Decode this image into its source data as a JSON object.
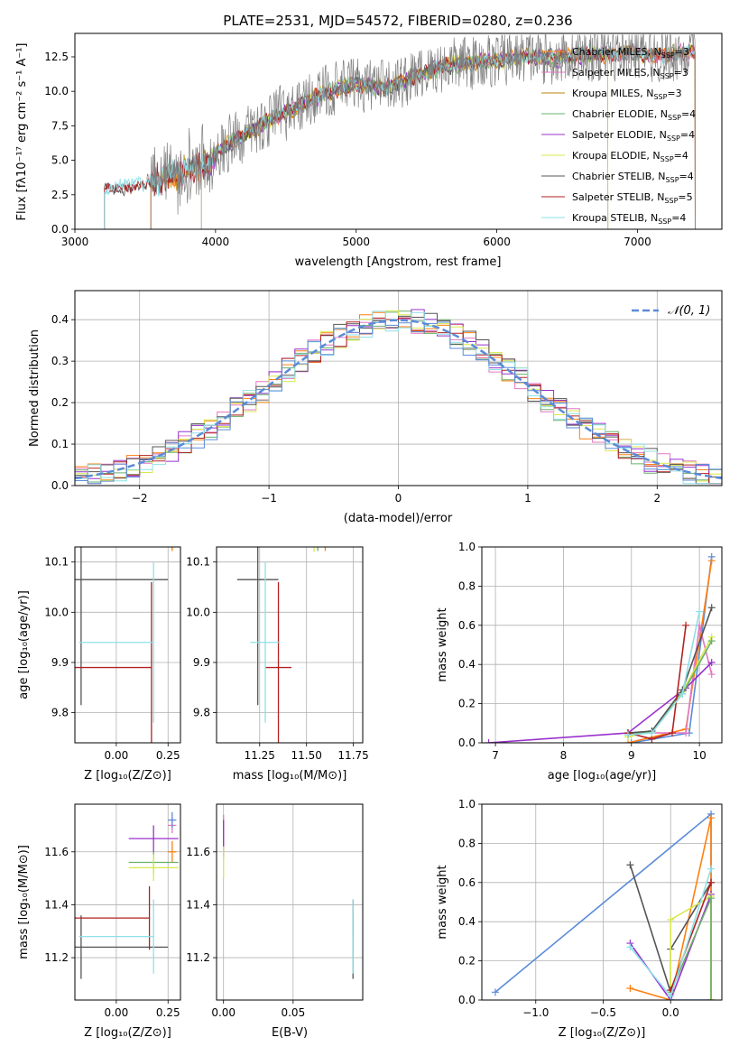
{
  "chart_data": [
    {
      "type": "line",
      "title": "PLATE=2531, MJD=54572, FIBERID=0280, z=0.236",
      "xlabel": "wavelength [Angstrom, rest frame]",
      "ylabel": "Flux [fλ10⁻¹⁷ erg cm⁻² s⁻¹ A⁻¹]",
      "xlim": [
        3000,
        7600
      ],
      "ylim": [
        0,
        14.2
      ],
      "xticks": [
        3000,
        4000,
        5000,
        6000,
        7000
      ],
      "yticks": [
        0.0,
        2.5,
        5.0,
        7.5,
        10.0,
        12.5
      ],
      "xticklabels": [
        "3000",
        "4000",
        "5000",
        "6000",
        "7000"
      ],
      "yticklabels": [
        "0.0",
        "2.5",
        "5.0",
        "7.5",
        "10.0",
        "12.5"
      ],
      "grid": false,
      "legend_position": "top-right",
      "continuum_x": [
        3200,
        3400,
        3600,
        3800,
        3950,
        4000,
        4200,
        4400,
        4600,
        4800,
        5000,
        5200,
        5400,
        5600,
        5800,
        6000,
        6200,
        6400,
        6600,
        6800,
        7000,
        7200,
        7400
      ],
      "continuum_y": [
        2.8,
        3.2,
        3.6,
        4.3,
        4.6,
        5.6,
        6.8,
        8.0,
        9.0,
        10.0,
        10.6,
        10.2,
        11.0,
        11.8,
        12.1,
        12.3,
        12.5,
        12.4,
        12.6,
        12.7,
        12.8,
        12.6,
        12.9
      ],
      "series": [
        {
          "name": "Chabrier MILES, N_SSP=3",
          "color": "#ff7f0e",
          "xrange": [
            3540,
            7410
          ]
        },
        {
          "name": "Salpeter MILES, N_SSP=3",
          "color": "#e377c2",
          "xrange": [
            3540,
            7410
          ]
        },
        {
          "name": "Kroupa MILES, N_SSP=3",
          "color": "#b8860b",
          "xrange": [
            3540,
            7410
          ]
        },
        {
          "name": "Chabrier ELODIE, N_SSP=4",
          "color": "#6ab06a",
          "xrange": [
            3900,
            6790
          ]
        },
        {
          "name": "Salpeter ELODIE, N_SSP=4",
          "color": "#9932cc",
          "xrange": [
            3900,
            6790
          ]
        },
        {
          "name": "Kroupa ELODIE, N_SSP=4",
          "color": "#d9e84e",
          "xrange": [
            3900,
            6790
          ]
        },
        {
          "name": "Chabrier STELIB, N_SSP=4",
          "color": "#555555",
          "xrange": [
            3210,
            7410
          ]
        },
        {
          "name": "Salpeter STELIB, N_SSP=5",
          "color": "#b22222",
          "xrange": [
            3210,
            7410
          ]
        },
        {
          "name": "Kroupa STELIB, N_SSP=4",
          "color": "#8ee0e8",
          "xrange": [
            3210,
            7410
          ]
        }
      ],
      "data_series": {
        "name": "data",
        "color": "#808080",
        "xrange": [
          3540,
          7410
        ]
      },
      "legend": {
        "entries": [
          {
            "base": "Chabrier MILES, N",
            "sub": "SSP",
            "tail": "=3",
            "color": "#ff7f0e"
          },
          {
            "base": "Salpeter MILES, N",
            "sub": "SSP",
            "tail": "=3",
            "color": "#e377c2"
          },
          {
            "base": "Kroupa MILES, N",
            "sub": "SSP",
            "tail": "=3",
            "color": "#b8860b"
          },
          {
            "base": "Chabrier ELODIE, N",
            "sub": "SSP",
            "tail": "=4",
            "color": "#6ab06a"
          },
          {
            "base": "Salpeter ELODIE, N",
            "sub": "SSP",
            "tail": "=4",
            "color": "#9932cc"
          },
          {
            "base": "Kroupa ELODIE, N",
            "sub": "SSP",
            "tail": "=4",
            "color": "#d9e84e"
          },
          {
            "base": "Chabrier STELIB, N",
            "sub": "SSP",
            "tail": "=4",
            "color": "#555555"
          },
          {
            "base": "Salpeter STELIB, N",
            "sub": "SSP",
            "tail": "=5",
            "color": "#b22222"
          },
          {
            "base": "Kroupa STELIB, N",
            "sub": "SSP",
            "tail": "=4",
            "color": "#8ee0e8"
          }
        ]
      }
    },
    {
      "type": "line",
      "title": "",
      "xlabel": "(data-model)/error",
      "ylabel": "Normed distribution",
      "xlim": [
        -2.5,
        2.5
      ],
      "ylim": [
        0,
        0.47
      ],
      "xticks": [
        -2,
        -1,
        0,
        1,
        2
      ],
      "yticks": [
        0.0,
        0.1,
        0.2,
        0.3,
        0.4
      ],
      "xticklabels": [
        "−2",
        "−1",
        "0",
        "1",
        "2"
      ],
      "yticklabels": [
        "0.0",
        "0.1",
        "0.2",
        "0.3",
        "0.4"
      ],
      "grid": true,
      "legend_position": "top-right",
      "legend_label": "𝒩(0, 1)",
      "gaussian": {
        "mean": 0,
        "sigma": 1,
        "color": "#5b8bd8"
      },
      "histogram_bin_width": 0.1,
      "histogram_colors": [
        "#ff7f0e",
        "#e377c2",
        "#6ab06a",
        "#9932cc",
        "#d9e84e",
        "#555555",
        "#b22222",
        "#8ee0e8",
        "#5b8bd8"
      ]
    },
    {
      "type": "scatter",
      "xlabel": "Z [log₁₀(Z/Z⊙)]",
      "ylabel": "age  [log₁₀(age/yr)]",
      "xlim": [
        -0.2,
        0.31
      ],
      "ylim": [
        9.74,
        10.13
      ],
      "xticks": [
        0.0,
        0.25
      ],
      "xticklabels": [
        "0.00",
        "0.25"
      ],
      "yticks": [
        9.8,
        9.9,
        10.0,
        10.1
      ],
      "yticklabels": [
        "9.8",
        "9.9",
        "10.0",
        "10.1"
      ],
      "grid": true,
      "points": [
        {
          "x": 0.27,
          "y": 10.152,
          "xerr": 0.02,
          "yerr": 0.03,
          "color": "#ff7f0e"
        },
        {
          "x": 0.27,
          "y": 10.155,
          "xerr": 0.02,
          "yerr": 0.02,
          "color": "#e377c2"
        },
        {
          "x": 0.18,
          "y": 10.152,
          "xerr": 0.12,
          "yerr": 0.02,
          "color": "#6ab06a"
        },
        {
          "x": 0.25,
          "y": 10.162,
          "xerr": 0.05,
          "yerr": 0.02,
          "color": "#9932cc"
        },
        {
          "x": 0.18,
          "y": 10.15,
          "xerr": 0.08,
          "yerr": 0.02,
          "color": "#d9e84e"
        },
        {
          "x": 0.25,
          "y": 10.168,
          "xerr": 0.02,
          "yerr": 0.02,
          "color": "#5b8bd8"
        },
        {
          "x": -0.17,
          "y": 10.065,
          "xerr_lo": 0.05,
          "xerr_hi": 0.42,
          "yerr": 0.25,
          "color": "#555555"
        },
        {
          "x": 0.17,
          "y": 9.89,
          "xerr_lo": 0.37,
          "xerr_hi": 0.0,
          "yerr": 0.17,
          "color": "#b22222"
        },
        {
          "x": 0.18,
          "y": 9.94,
          "xerr_lo": 0.36,
          "xerr_hi": 0.0,
          "yerr": 0.16,
          "color": "#8ee0e8"
        }
      ]
    },
    {
      "type": "scatter",
      "xlabel": "mass [log₁₀(M/M⊙)]",
      "ylabel": "",
      "xlim": [
        11.02,
        11.8
      ],
      "ylim": [
        9.74,
        10.13
      ],
      "xticks": [
        11.25,
        11.5,
        11.75
      ],
      "xticklabels": [
        "11.25",
        "11.50",
        "11.75"
      ],
      "yticks": [
        9.8,
        9.9,
        10.0,
        10.1
      ],
      "yticklabels": [
        "9.8",
        "9.9",
        "10.0",
        "10.1"
      ],
      "grid": true,
      "points": [
        {
          "x": 11.6,
          "y": 10.152,
          "xerr": 0.05,
          "yerr": 0.03,
          "color": "#ff7f0e"
        },
        {
          "x": 11.7,
          "y": 10.155,
          "xerr": 0.03,
          "yerr": 0.02,
          "color": "#e377c2"
        },
        {
          "x": 11.56,
          "y": 10.152,
          "xerr": 0.08,
          "yerr": 0.03,
          "color": "#6ab06a"
        },
        {
          "x": 11.65,
          "y": 10.16,
          "xerr": 0.07,
          "yerr": 0.03,
          "color": "#9932cc"
        },
        {
          "x": 11.54,
          "y": 10.15,
          "xerr": 0.06,
          "yerr": 0.03,
          "color": "#d9e84e"
        },
        {
          "x": 11.72,
          "y": 10.165,
          "xerr": 0.03,
          "yerr": 0.02,
          "color": "#5b8bd8"
        },
        {
          "x": 11.24,
          "y": 10.065,
          "xerr": 0.11,
          "yerr": 0.25,
          "color": "#555555"
        },
        {
          "x": 11.35,
          "y": 9.89,
          "xerr": 0.07,
          "yerr": 0.17,
          "color": "#b22222"
        },
        {
          "x": 11.28,
          "y": 9.94,
          "xerr": 0.08,
          "yerr": 0.16,
          "color": "#8ee0e8"
        }
      ]
    },
    {
      "type": "line",
      "xlabel": "age  [log₁₀(age/yr)]",
      "ylabel": "mass weight",
      "xlim": [
        6.8,
        10.33
      ],
      "ylim": [
        0.0,
        1.0
      ],
      "xticks": [
        7,
        8,
        9,
        10
      ],
      "xticklabels": [
        "7",
        "8",
        "9",
        "10"
      ],
      "yticks": [
        0.0,
        0.2,
        0.4,
        0.6,
        0.8,
        1.0
      ],
      "yticklabels": [
        "0.0",
        "0.2",
        "0.4",
        "0.6",
        "0.8",
        "1.0"
      ],
      "grid": true,
      "series": [
        {
          "color": "#5b8bd8",
          "x": [
            9.0,
            9.85,
            10.18
          ],
          "y": [
            0.0,
            0.05,
            0.95
          ]
        },
        {
          "color": "#ff7f0e",
          "x": [
            8.95,
            9.8,
            10.18
          ],
          "y": [
            0.0,
            0.07,
            0.93
          ]
        },
        {
          "color": "#e377c2",
          "x": [
            8.95,
            9.8,
            10.0,
            10.18
          ],
          "y": [
            0.05,
            0.05,
            0.6,
            0.35
          ]
        },
        {
          "color": "#9932cc",
          "x": [
            6.9,
            8.95,
            9.8,
            10.18
          ],
          "y": [
            0.0,
            0.05,
            0.28,
            0.41
          ]
        },
        {
          "color": "#d9e84e",
          "x": [
            8.95,
            9.3,
            9.75,
            10.18
          ],
          "y": [
            0.03,
            0.06,
            0.26,
            0.54
          ]
        },
        {
          "color": "#6ab06a",
          "x": [
            8.95,
            9.3,
            9.75,
            10.18
          ],
          "y": [
            0.04,
            0.06,
            0.25,
            0.52
          ]
        },
        {
          "color": "#555555",
          "x": [
            8.95,
            9.3,
            9.75,
            10.18
          ],
          "y": [
            0.05,
            0.06,
            0.27,
            0.69
          ]
        },
        {
          "color": "#b22222",
          "x": [
            8.95,
            9.3,
            9.6,
            9.8
          ],
          "y": [
            0.05,
            0.02,
            0.05,
            0.6
          ]
        },
        {
          "color": "#8ee0e8",
          "x": [
            8.95,
            9.3,
            9.75,
            10.0
          ],
          "y": [
            0.04,
            0.05,
            0.25,
            0.67
          ]
        }
      ]
    },
    {
      "type": "scatter",
      "xlabel": "Z [log₁₀(Z/Z⊙)]",
      "ylabel": "mass [log₁₀(M/M⊙)]",
      "xlim": [
        -0.2,
        0.31
      ],
      "ylim": [
        11.04,
        11.78
      ],
      "xticks": [
        0.0,
        0.25
      ],
      "xticklabels": [
        "0.00",
        "0.25"
      ],
      "yticks": [
        11.2,
        11.4,
        11.6
      ],
      "yticklabels": [
        "11.2",
        "11.4",
        "11.6"
      ],
      "grid": true,
      "points": [
        {
          "x": 0.27,
          "y": 11.6,
          "xerr": 0.02,
          "yerr": 0.04,
          "color": "#ff7f0e"
        },
        {
          "x": 0.27,
          "y": 11.7,
          "xerr": 0.02,
          "yerr": 0.03,
          "color": "#e377c2"
        },
        {
          "x": 0.18,
          "y": 11.56,
          "xerr": 0.12,
          "yerr": 0.04,
          "color": "#6ab06a"
        },
        {
          "x": 0.18,
          "y": 11.65,
          "xerr": 0.12,
          "yerr": 0.05,
          "color": "#9932cc"
        },
        {
          "x": 0.18,
          "y": 11.54,
          "xerr": 0.12,
          "yerr": 0.05,
          "color": "#d9e84e"
        },
        {
          "x": 0.27,
          "y": 11.72,
          "xerr": 0.02,
          "yerr": 0.03,
          "color": "#5b8bd8"
        },
        {
          "x": -0.17,
          "y": 11.24,
          "xerr_lo": 0.05,
          "xerr_hi": 0.42,
          "yerr": 0.12,
          "color": "#555555"
        },
        {
          "x": 0.16,
          "y": 11.35,
          "xerr_lo": 0.36,
          "xerr_hi": 0.0,
          "yerr": 0.12,
          "color": "#b22222"
        },
        {
          "x": 0.18,
          "y": 11.28,
          "xerr_lo": 0.36,
          "xerr_hi": 0.0,
          "yerr": 0.14,
          "color": "#8ee0e8"
        }
      ]
    },
    {
      "type": "scatter",
      "xlabel": "E(B-V)",
      "ylabel": "",
      "xlim": [
        -0.005,
        0.1
      ],
      "ylim": [
        11.04,
        11.78
      ],
      "xticks": [
        0.0,
        0.05
      ],
      "xticklabels": [
        "0.00",
        "0.05"
      ],
      "yticks": [
        11.2,
        11.4,
        11.6
      ],
      "yticklabels": [
        "11.2",
        "11.4",
        "11.6"
      ],
      "grid": true,
      "points": [
        {
          "x": 0.0,
          "y": 11.68,
          "yerr": 0.06,
          "color": "#e377c2"
        },
        {
          "x": 0.0,
          "y": 11.65,
          "yerr": 0.07,
          "color": "#9932cc"
        },
        {
          "x": 0.0,
          "y": 11.56,
          "yerr": 0.06,
          "color": "#d9e84e"
        },
        {
          "x": 0.093,
          "y": 11.35,
          "yerr": 0.07,
          "color": "#b22222"
        },
        {
          "x": 0.093,
          "y": 11.24,
          "yerr": 0.12,
          "color": "#555555"
        },
        {
          "x": 0.093,
          "y": 11.28,
          "yerr": 0.14,
          "color": "#8ee0e8"
        }
      ]
    },
    {
      "type": "line",
      "xlabel": "Z [log₁₀(Z/Z⊙)]",
      "ylabel": "mass weight",
      "xlim": [
        -1.4,
        0.38
      ],
      "ylim": [
        0.0,
        1.0
      ],
      "xticks": [
        -1.0,
        -0.5,
        0.0
      ],
      "xticklabels": [
        "−1.0",
        "−0.5",
        "0.0"
      ],
      "yticks": [
        0.0,
        0.2,
        0.4,
        0.6,
        0.8,
        1.0
      ],
      "yticklabels": [
        "0.0",
        "0.2",
        "0.4",
        "0.6",
        "0.8",
        "1.0"
      ],
      "grid": true,
      "series": [
        {
          "color": "#5b8bd8",
          "x": [
            -1.3,
            0.3,
            0.3,
            0.0
          ],
          "y": [
            0.04,
            0.95,
            0.0,
            0.0
          ]
        },
        {
          "color": "#ff7f0e",
          "x": [
            -0.3,
            0.0,
            0.3,
            0.3
          ],
          "y": [
            0.06,
            0.0,
            0.93,
            0.0
          ]
        },
        {
          "color": "#555555",
          "x": [
            -0.3,
            0.0,
            0.0,
            0.3
          ],
          "y": [
            0.69,
            0.04,
            0.26,
            0.6
          ]
        },
        {
          "color": "#9932cc",
          "x": [
            -0.3,
            0.0,
            0.3
          ],
          "y": [
            0.29,
            0.0,
            0.54
          ]
        },
        {
          "color": "#d9e84e",
          "x": [
            0.0,
            0.0,
            0.3,
            0.3
          ],
          "y": [
            0.04,
            0.41,
            0.53,
            0.0
          ]
        },
        {
          "color": "#6ab06a",
          "x": [
            0.0,
            0.3,
            0.3
          ],
          "y": [
            0.04,
            0.52,
            0.0
          ]
        },
        {
          "color": "#b22222",
          "x": [
            0.0,
            0.3
          ],
          "y": [
            0.05,
            0.6
          ]
        },
        {
          "color": "#8ee0e8",
          "x": [
            -0.3,
            0.0,
            0.3
          ],
          "y": [
            0.27,
            0.02,
            0.67
          ]
        }
      ]
    }
  ]
}
